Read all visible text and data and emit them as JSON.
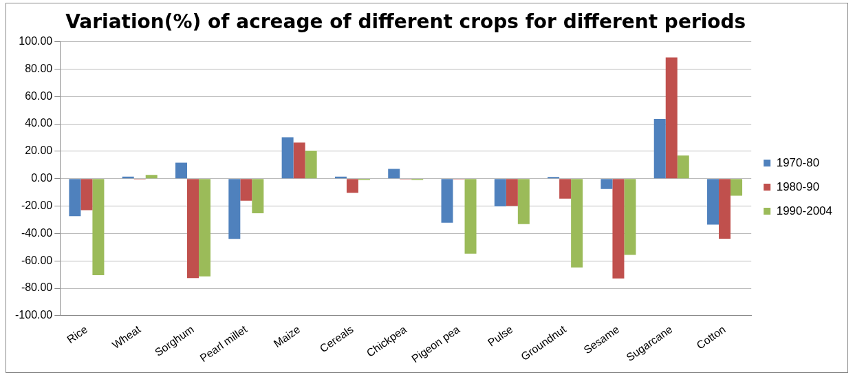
{
  "chart_data": {
    "type": "bar",
    "title": "Variation(%) of acreage of different crops for different periods",
    "categories": [
      "Rice",
      "Wheat",
      "Sorghum",
      "Pearl millet",
      "Maize",
      "Cereals",
      "Chickpea",
      "Pigeon pea",
      "Pulse",
      "Groundnut",
      "Sesame",
      "Sugarcane",
      "Cotton"
    ],
    "series": [
      {
        "name": "1970-80",
        "color": "#4f81bd",
        "values": [
          -27.4,
          1.5,
          11.7,
          -43.9,
          30.3,
          1.5,
          7.1,
          -32.2,
          -20.2,
          1.3,
          -7.6,
          43.6,
          -33.6
        ]
      },
      {
        "name": "1980-90",
        "color": "#c0504d",
        "values": [
          -23,
          -0.5,
          -72.6,
          -16.1,
          26.4,
          -10.3,
          -0.5,
          -0.5,
          -19.9,
          -14.6,
          -72.9,
          88.5,
          -43.8
        ]
      },
      {
        "name": "1990-2004",
        "color": "#9bbb59",
        "values": [
          -70.4,
          2.8,
          -71.3,
          -25.3,
          20.4,
          -1,
          -1,
          -54.8,
          -33.1,
          -64.8,
          -55.6,
          16.9,
          -12.5
        ]
      }
    ],
    "ylim": [
      -100,
      100
    ],
    "yticks": [
      {
        "value": -100,
        "label": "-100.00"
      },
      {
        "value": -80,
        "label": "-80.00"
      },
      {
        "value": -60,
        "label": "-60.00"
      },
      {
        "value": -40,
        "label": "-40.00"
      },
      {
        "value": -20,
        "label": "-20.00"
      },
      {
        "value": 0,
        "label": "0.00"
      },
      {
        "value": 20,
        "label": "20.00"
      },
      {
        "value": 40,
        "label": "40.00"
      },
      {
        "value": 60,
        "label": "60.00"
      },
      {
        "value": 80,
        "label": "80.00"
      },
      {
        "value": 100,
        "label": "100.00"
      }
    ],
    "grid": "y",
    "legend": "right"
  }
}
